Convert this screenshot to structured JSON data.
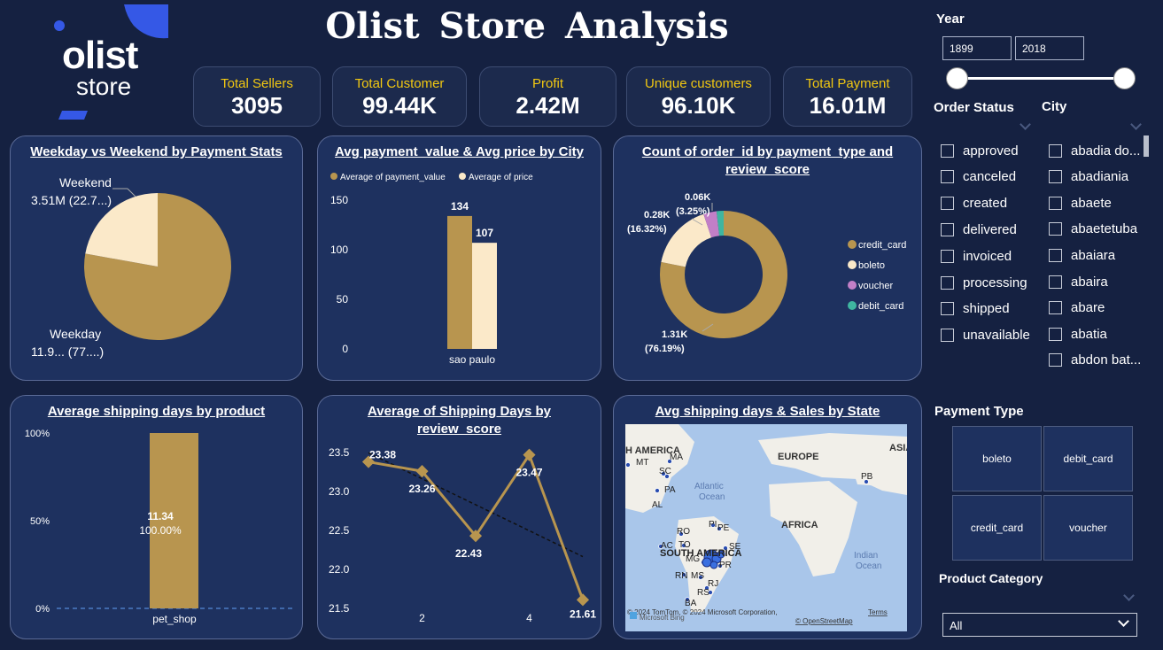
{
  "header": {
    "title": "Olist Store Analysis",
    "logo_line1": "olist",
    "logo_line2": "store"
  },
  "kpis": [
    {
      "label": "Total Sellers",
      "value": "3095"
    },
    {
      "label": "Total Customer",
      "value": "99.44K"
    },
    {
      "label": "Profit",
      "value": "2.42M"
    },
    {
      "label": "Unique customers",
      "value": "96.10K"
    },
    {
      "label": "Total Payment",
      "value": "16.01M"
    }
  ],
  "colors": {
    "gold": "#b8954f",
    "cream": "#fbe9c9",
    "voucher": "#c27fc7",
    "debit": "#3fb5a0",
    "kpi_label": "#f2c811",
    "background": "#152141",
    "card": "#1e315f"
  },
  "filters": {
    "year_label": "Year",
    "year_from": "1899",
    "year_to": "2018",
    "order_status_label": "Order Status",
    "order_status_options": [
      "approved",
      "canceled",
      "created",
      "delivered",
      "invoiced",
      "processing",
      "shipped",
      "unavailable"
    ],
    "city_label": "City",
    "city_options": [
      "abadia do...",
      "abadiania",
      "abaete",
      "abaetetuba",
      "abaiara",
      "abaira",
      "abare",
      "abatia",
      "abdon bat..."
    ],
    "payment_type_label": "Payment Type",
    "payment_types": [
      "boleto",
      "debit_card",
      "credit_card",
      "voucher"
    ],
    "product_category_label": "Product Category",
    "product_category_value": "All"
  },
  "charts": {
    "weekday": {
      "title": "Weekday vs Weekend by Payment Stats",
      "weekend_label": "Weekend",
      "weekend_value": "3.51M (22.7...)",
      "weekday_label": "Weekday",
      "weekday_value": "11.9... (77....)"
    },
    "city": {
      "title": "Avg payment_value & Avg price by City",
      "legend1": "Average of payment_value",
      "legend2": "Average of price"
    },
    "payment": {
      "title": "Count of order_id by payment_type and review_score",
      "lbl_voucher": "0.06K",
      "lbl_voucher_pct": "(3.25%)",
      "lbl_boleto": "0.28K",
      "lbl_boleto_pct": "(16.32%)",
      "lbl_credit": "1.31K",
      "lbl_credit_pct": "(76.19%)"
    },
    "product": {
      "title": "Average shipping days by product",
      "bar_value": "11.34",
      "bar_pct": "100.00%"
    },
    "review": {
      "title": "Average of Shipping Days by review_score"
    },
    "map": {
      "title": "Avg shipping days & Sales by State",
      "copyright": "© 2024 TomTom, © 2024 Microsoft Corporation,",
      "terms": "Terms",
      "osm": "© OpenStreetMap",
      "bing": "Microsoft Bing",
      "region_labels": [
        "H AMERICA",
        "EUROPE",
        "ASIA",
        "AFRICA",
        "Atlantic",
        "Ocean",
        "Indian",
        "Ocean",
        "SOUTH AMERICA"
      ],
      "state_labels": [
        "MT",
        "MA",
        "SC",
        "PA",
        "AL",
        "PB",
        "PI",
        "RO",
        "PE",
        "AC",
        "TO",
        "SE",
        "MG",
        "PR",
        "RN",
        "MS",
        "RJ",
        "RS",
        "BA"
      ]
    }
  },
  "chart_data": [
    {
      "type": "pie",
      "title": "Weekday vs Weekend by Payment Stats",
      "labels": [
        "Weekday",
        "Weekend"
      ],
      "values": [
        11.9,
        3.51
      ],
      "percent": [
        77.3,
        22.7
      ],
      "units": "M"
    },
    {
      "type": "bar",
      "title": "Avg payment_value & Avg price by City",
      "categories": [
        "sao paulo"
      ],
      "series": [
        {
          "name": "Average of payment_value",
          "values": [
            134
          ]
        },
        {
          "name": "Average of price",
          "values": [
            107
          ]
        }
      ],
      "ylim": [
        0,
        150
      ],
      "yticks": [
        "0",
        "50",
        "100",
        "150"
      ]
    },
    {
      "type": "pie",
      "title": "Count of order_id by payment_type and review_score",
      "labels": [
        "credit_card",
        "boleto",
        "voucher",
        "debit_card"
      ],
      "values": [
        1.31,
        0.28,
        0.06,
        0.03
      ],
      "percent": [
        76.19,
        16.32,
        3.25,
        1.74
      ],
      "units": "K"
    },
    {
      "type": "bar",
      "title": "Average shipping days by product",
      "categories": [
        "pet_shop"
      ],
      "values": [
        11.34
      ],
      "percent": [
        100.0
      ],
      "yticks": [
        "0%",
        "50%",
        "100%"
      ]
    },
    {
      "type": "line",
      "title": "Average of Shipping Days by review_score",
      "x": [
        1,
        2,
        3,
        4,
        5
      ],
      "values": [
        23.38,
        23.26,
        22.43,
        23.47,
        21.61
      ],
      "ylim": [
        21.5,
        23.5
      ],
      "yticks": [
        "21.5",
        "22.0",
        "22.5",
        "23.0",
        "23.5"
      ],
      "xticks": [
        "2",
        "4"
      ],
      "trendline": true
    }
  ]
}
